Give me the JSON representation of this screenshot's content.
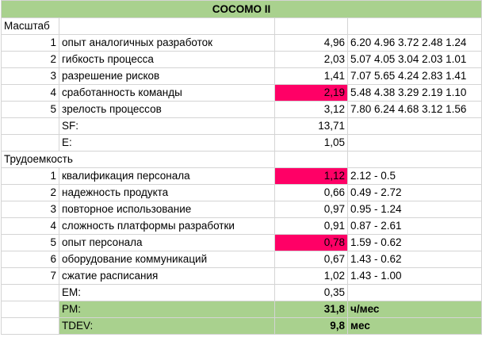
{
  "sheet": {
    "title": "COCOMO II",
    "sections": {
      "scale": "Масштаб",
      "effort": "Трудоемкость"
    },
    "scale_rows": [
      {
        "n": "1",
        "name": "опыт аналогичных разработок",
        "value": "4,96",
        "range": "6.20 4.96 3.72 2.48 1.24"
      },
      {
        "n": "2",
        "name": "гибкость процесса",
        "value": "2,03",
        "range": "5.07 4.05 3.04 2.03 1.01"
      },
      {
        "n": "3",
        "name": "разрешение рисков",
        "value": "1,41",
        "range": "7.07 5.65 4.24 2.83 1.41"
      },
      {
        "n": "4",
        "name": "сработанность команды",
        "value": "2,19",
        "range": "5.48 4.38 3.29 2.19 1.10"
      },
      {
        "n": "5",
        "name": "зрелость процессов",
        "value": "3,12",
        "range": "7.80 6.24 4.68 3.12 1.56"
      }
    ],
    "sf": {
      "label": "SF:",
      "value": "13,71"
    },
    "e": {
      "label": "E:",
      "value": "1,05"
    },
    "effort_rows": [
      {
        "n": "1",
        "name": "квалификация персонала",
        "value": "1,12",
        "range": "2.12 - 0.5"
      },
      {
        "n": "2",
        "name": "надежность продукта",
        "value": "0,66",
        "range": "0.49 - 2.72"
      },
      {
        "n": "3",
        "name": "повторное использование",
        "value": "0,97",
        "range": "0.95 - 1.24"
      },
      {
        "n": "4",
        "name": "сложность платформы разработки",
        "value": "0,91",
        "range": "0.87 - 2.61"
      },
      {
        "n": "5",
        "name": "опыт персонала",
        "value": "0,78",
        "range": "1.59 - 0.62"
      },
      {
        "n": "6",
        "name": "оборудование коммуникаций",
        "value": "0,67",
        "range": "1.43 - 0.62"
      },
      {
        "n": "7",
        "name": "сжатие расписания",
        "value": "1,02",
        "range": "1.43 - 1.00"
      }
    ],
    "em": {
      "label": "EM:",
      "value": "0,35"
    },
    "pm": {
      "label": "PM:",
      "value": "31,8",
      "unit": "ч/мес"
    },
    "tdev": {
      "label": "TDEV:",
      "value": "9,8",
      "unit": "мес"
    }
  },
  "colors": {
    "header_green": "#a9d18e",
    "highlight_pink": "#ff0066",
    "grid_line": "#d4d4d4"
  }
}
